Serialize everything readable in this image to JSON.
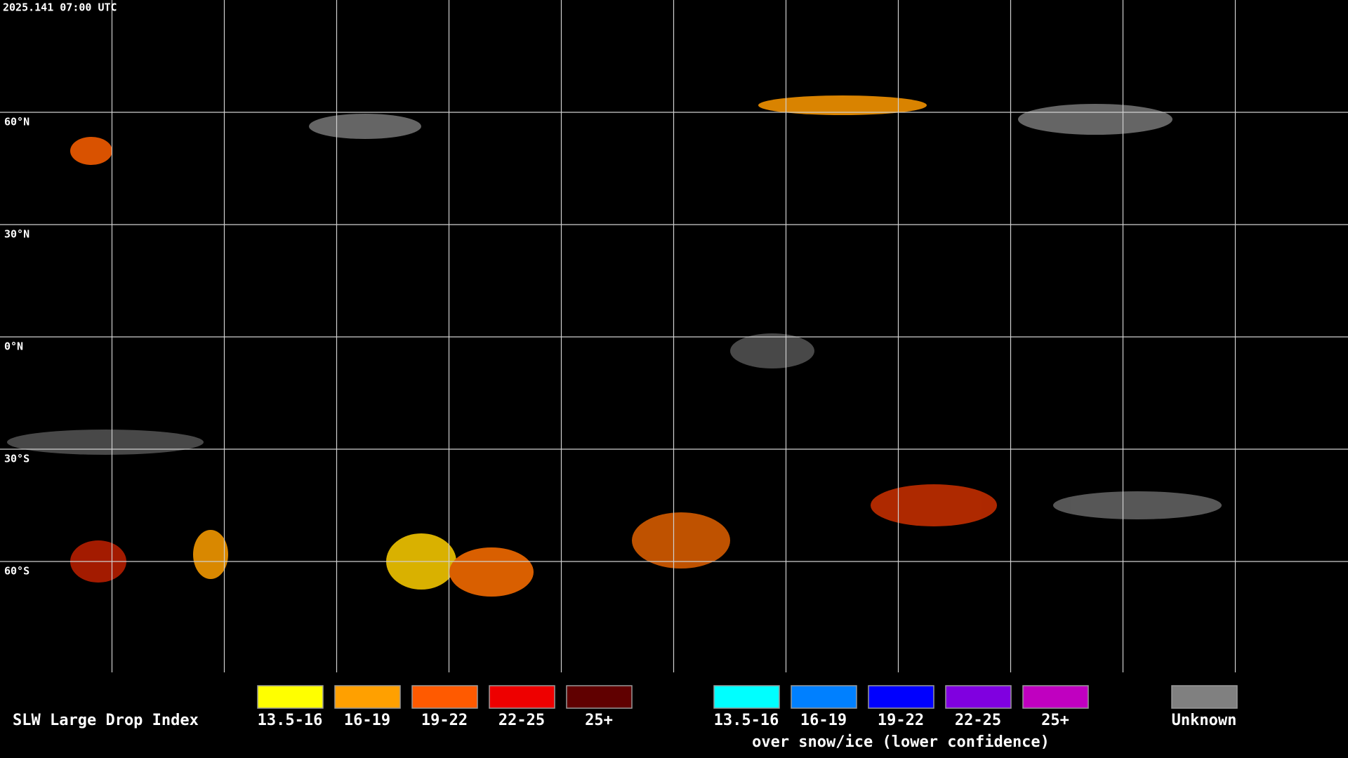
{
  "timestamp": "2025.141 07:00 UTC",
  "latitude_labels": [
    "60°N",
    "30°N",
    "0°N",
    "30°S",
    "60°S"
  ],
  "legend": {
    "title": "SLW Large Drop Index",
    "groups": [
      {
        "items": [
          {
            "label": "13.5-16",
            "color": "#ffff00"
          },
          {
            "label": "16-19",
            "color": "#ffa000"
          },
          {
            "label": "19-22",
            "color": "#ff5a00"
          },
          {
            "label": "22-25",
            "color": "#ee0000"
          },
          {
            "label": "25+",
            "color": "#600000"
          }
        ]
      },
      {
        "items": [
          {
            "label": "13.5-16",
            "color": "#00ffff"
          },
          {
            "label": "16-19",
            "color": "#0080ff"
          },
          {
            "label": "19-22",
            "color": "#0000ff"
          },
          {
            "label": "22-25",
            "color": "#8000e0"
          },
          {
            "label": "25+",
            "color": "#c000c0"
          }
        ],
        "caption": "over snow/ice (lower confidence)"
      }
    ],
    "unknown": {
      "label": "Unknown",
      "color": "#808080"
    }
  }
}
